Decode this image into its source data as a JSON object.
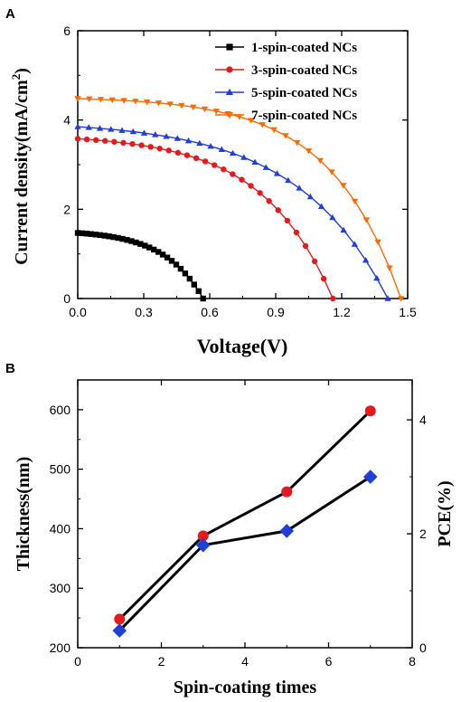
{
  "chart_data": [
    {
      "panel_label": "A",
      "type": "line",
      "xlabel": "Voltage(V)",
      "ylabel": "Current density(mA/cm",
      "ylabel_sup": "2",
      "ylabel_close": ")",
      "xlim": [
        0.0,
        1.5
      ],
      "ylim": [
        0,
        6
      ],
      "xticks": [
        "0.0",
        "0.3",
        "0.6",
        "0.9",
        "1.2",
        "1.5"
      ],
      "yticks": [
        "0",
        "2",
        "4",
        "6"
      ],
      "legend_position": "top-right",
      "grid": false,
      "series": [
        {
          "name": "1-spin-coated NCs",
          "color": "#000000",
          "marker": "square",
          "voc": 0.57,
          "jsc": 1.47,
          "curvature": 3.2
        },
        {
          "name": "3-spin-coated NCs",
          "color": "#e41a1c",
          "marker": "circle",
          "voc": 1.16,
          "jsc": 3.58,
          "curvature": 3.6
        },
        {
          "name": "5-spin-coated NCs",
          "color": "#1f3fd6",
          "marker": "triangle-up",
          "voc": 1.41,
          "jsc": 3.85,
          "curvature": 3.4
        },
        {
          "name": "7-spin-coated NCs",
          "color": "#ff6a00",
          "marker": "triangle-down",
          "voc": 1.47,
          "jsc": 4.48,
          "curvature": 4.6
        }
      ]
    },
    {
      "panel_label": "B",
      "type": "line",
      "xlabel": "Spin-coating times",
      "ylabel": "Thickness(nm)",
      "y2label": "PCE(%)",
      "xlim": [
        0,
        8
      ],
      "ylim": [
        200,
        650
      ],
      "y2lim": [
        0,
        4.7
      ],
      "xticks": [
        "0",
        "2",
        "4",
        "6",
        "8"
      ],
      "yticks": [
        "200",
        "300",
        "400",
        "500",
        "600"
      ],
      "y2ticks": [
        "0",
        "2",
        "4"
      ],
      "grid": false,
      "series": [
        {
          "axis": "left",
          "color": "#e41a1c",
          "marker": "circle",
          "x": [
            1,
            3,
            5,
            7
          ],
          "y": [
            248,
            388,
            462,
            598
          ]
        },
        {
          "axis": "right",
          "color": "#1f3fd6",
          "marker": "diamond",
          "x": [
            1,
            3,
            5,
            7
          ],
          "y": [
            0.3,
            1.8,
            2.05,
            3.0
          ]
        }
      ]
    }
  ]
}
